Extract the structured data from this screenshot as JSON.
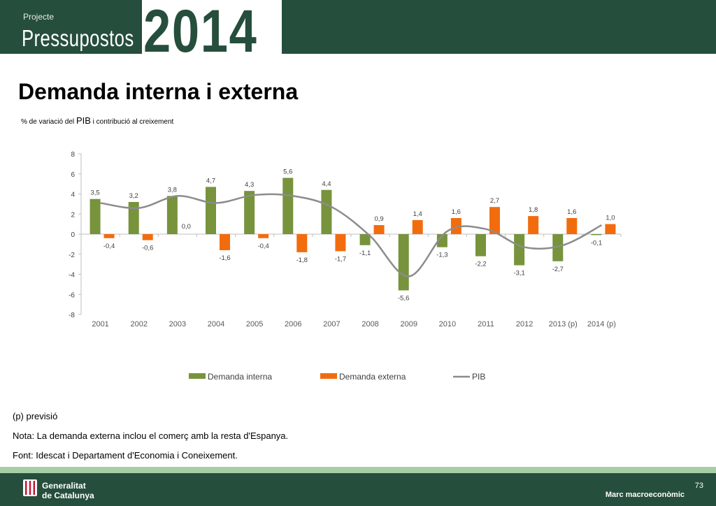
{
  "header": {
    "projecte": "Projecte",
    "pressupostos": "Pressupostos",
    "year": "2014"
  },
  "page_title": "Demanda interna i externa",
  "subtitle": {
    "pre": "% de variació del ",
    "big": "PIB",
    "post": " i contribució al creixement"
  },
  "notes": [
    "(p) previsió",
    "Nota: La demanda externa inclou el comerç amb la resta d'Espanya.",
    "Font: Idescat i Departament d'Economia i Coneixement."
  ],
  "footer": {
    "org_line1": "Generalitat",
    "org_line2": "de Catalunya",
    "page_number": "73",
    "section": "Marc macroeconòmic"
  },
  "colors": {
    "header_bg": "#264e3c",
    "interna": "#77933c",
    "externa": "#f26c0d",
    "pib": "#8c8c8c",
    "band": "#a7cda5"
  },
  "chart_data": {
    "type": "bar",
    "categories": [
      "2001",
      "2002",
      "2003",
      "2004",
      "2005",
      "2006",
      "2007",
      "2008",
      "2009",
      "2010",
      "2011",
      "2012",
      "2013 (p)",
      "2014 (p)"
    ],
    "series": [
      {
        "name": "Demanda interna",
        "type": "bar",
        "color": "#77933c",
        "values": [
          3.5,
          3.2,
          3.8,
          4.7,
          4.3,
          5.6,
          4.4,
          -1.1,
          -5.6,
          -1.3,
          -2.2,
          -3.1,
          -2.7,
          -0.1
        ],
        "labels": [
          "3,5",
          "3,2",
          "3,8",
          "4,7",
          "4,3",
          "5,6",
          "4,4",
          "-1,1",
          "-5,6",
          "-1,3",
          "-2,2",
          "-3,1",
          "-2,7",
          "-0,1"
        ]
      },
      {
        "name": "Demanda externa",
        "type": "bar",
        "color": "#f26c0d",
        "values": [
          -0.4,
          -0.6,
          0.0,
          -1.6,
          -0.4,
          -1.8,
          -1.7,
          0.9,
          1.4,
          1.6,
          2.7,
          1.8,
          1.6,
          1.0
        ],
        "labels": [
          "-0,4",
          "-0,6",
          "0,0",
          "-1,6",
          "-0,4",
          "-1,8",
          "-1,7",
          "0,9",
          "1,4",
          "1,6",
          "2,7",
          "1,8",
          "1,6",
          "1,0"
        ]
      },
      {
        "name": "PIB",
        "type": "line",
        "color": "#8c8c8c",
        "values": [
          3.1,
          2.6,
          3.8,
          3.1,
          3.9,
          3.8,
          2.7,
          -0.2,
          -4.2,
          0.3,
          0.5,
          -1.3,
          -1.1,
          0.9
        ]
      }
    ],
    "ylim": [
      -8,
      8
    ],
    "yticks": [
      "8",
      "6",
      "4",
      "2",
      "0",
      "-2",
      "-4",
      "-6",
      "-8"
    ],
    "ytick_values": [
      8,
      6,
      4,
      2,
      0,
      -2,
      -4,
      -6,
      -8
    ],
    "legend_position": "bottom",
    "grid": false
  }
}
